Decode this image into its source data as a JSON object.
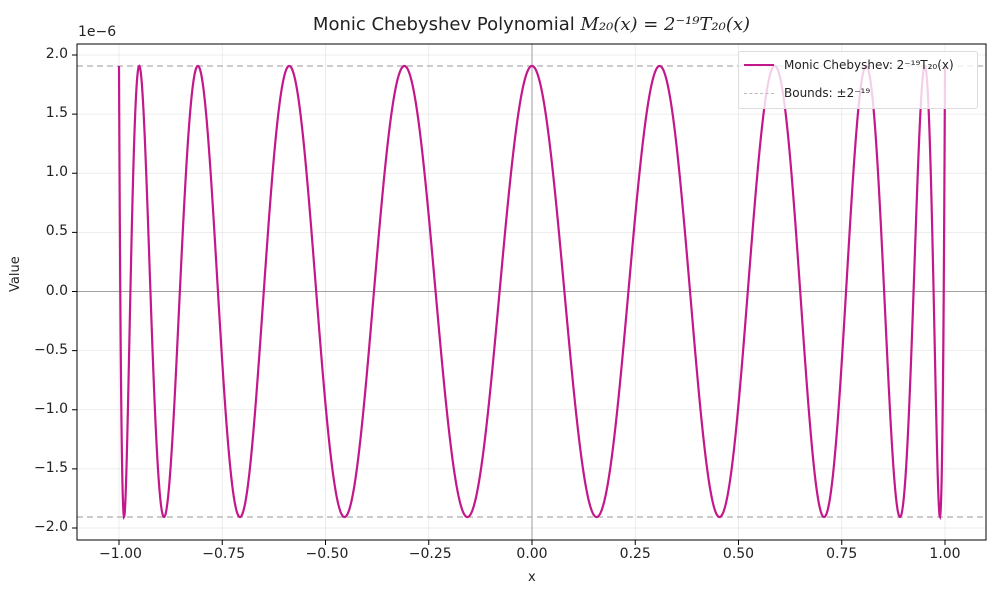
{
  "chart_data": {
    "type": "line",
    "title": "Monic Chebyshev Polynomial M20(x) = 2^-19 T20(x)",
    "title_parts": {
      "prefix": "Monic Chebyshev Polynomial ",
      "formula": "M₂₀(x) = 2⁻¹⁹T₂₀(x)"
    },
    "xlabel": "x",
    "ylabel": "Value",
    "y_offset_label": "1e−6",
    "xlim": [
      -1.1,
      1.1
    ],
    "ylim": [
      -2.1e-06,
      2.1e-06
    ],
    "x_ticks": [
      "−1.00",
      "−0.75",
      "−0.50",
      "−0.25",
      "0.00",
      "0.25",
      "0.50",
      "0.75",
      "1.00"
    ],
    "x_tick_values": [
      -1,
      -0.75,
      -0.5,
      -0.25,
      0,
      0.25,
      0.5,
      0.75,
      1
    ],
    "y_ticks": [
      "2.0",
      "1.5",
      "1.0",
      "0.5",
      "0.0",
      "−0.5",
      "−1.0",
      "−1.5",
      "−2.0"
    ],
    "y_tick_values": [
      2.0,
      1.5,
      1.0,
      0.5,
      0.0,
      -0.5,
      -1.0,
      -1.5,
      -2.0
    ],
    "grid": true,
    "legend_position": "upper right",
    "series": [
      {
        "name": "Monic Chebyshev: 2^-19 T20(x)",
        "label_text": "Monic Chebyshev: 2⁻¹⁹T₂₀(x)",
        "degree": 20,
        "scale": 1.9073486328125e-06,
        "x_range": [
          -1,
          1
        ],
        "color": "#c2188b",
        "style": "solid"
      },
      {
        "name": "Bounds: ±2^-19",
        "label_text": "Bounds: ±2⁻¹⁹",
        "values": [
          1.9073486328125e-06,
          -1.9073486328125e-06
        ],
        "color": "#bbbbbb",
        "style": "dashed"
      }
    ]
  }
}
